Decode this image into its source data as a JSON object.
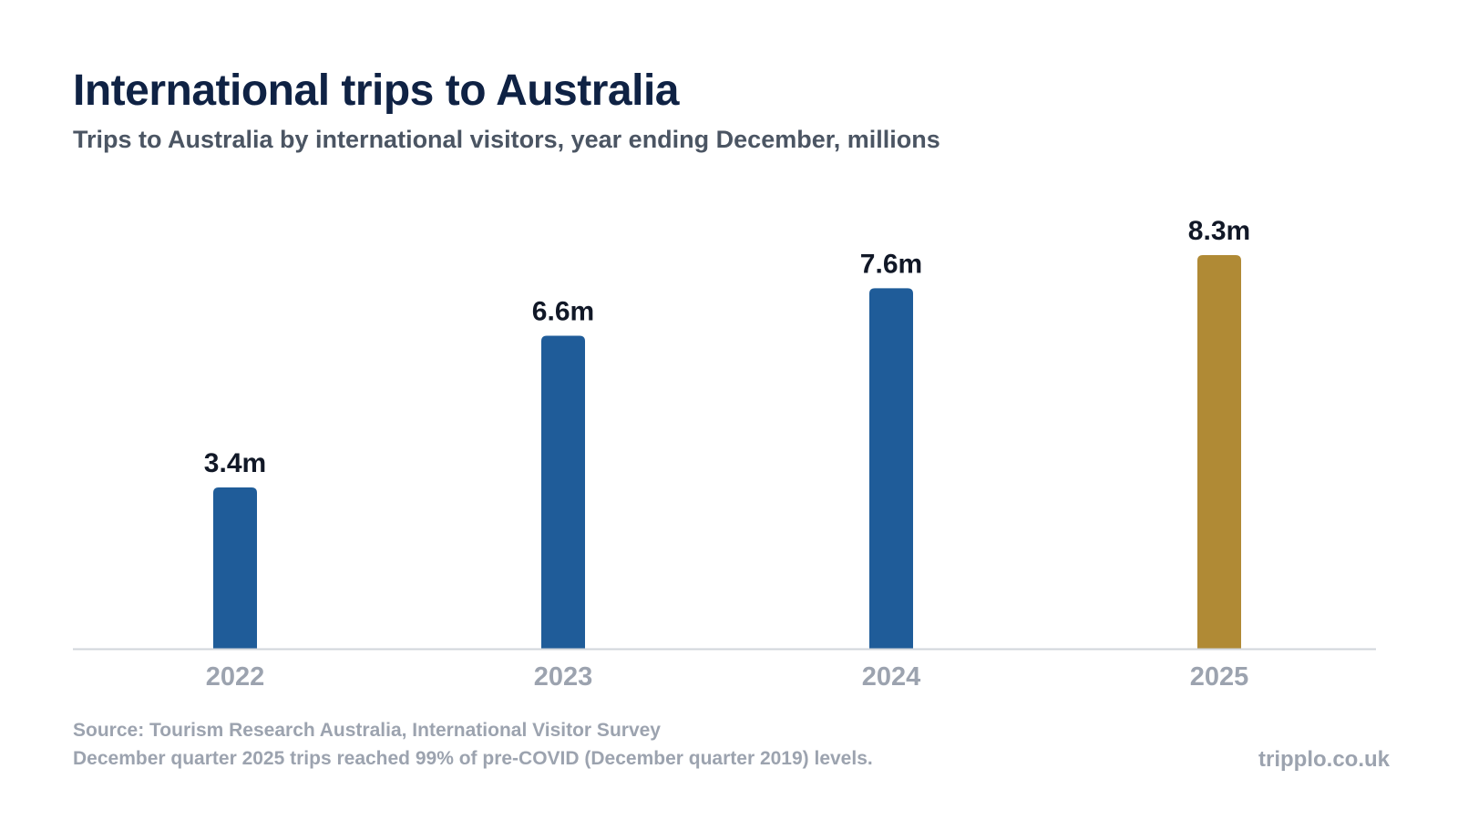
{
  "title": "International trips to Australia",
  "subtitle": "Trips to Australia by international visitors, year ending December, millions",
  "footer": {
    "source": "Source: Tourism Research Australia, International Visitor Survey",
    "note": "December quarter 2025 trips reached 99% of pre-COVID (December quarter 2019) levels.",
    "brand": "tripplo.co.uk"
  },
  "colors": {
    "bar": "#1f5c99",
    "highlight": "#b08a35",
    "axis": "#d1d5db",
    "value_label": "#111827",
    "tick_label": "#9ca3af"
  },
  "chart_data": {
    "type": "bar",
    "title": "International trips to Australia",
    "subtitle": "Trips to Australia by international visitors, year ending December, millions",
    "categories": [
      "2022",
      "2023",
      "2024",
      "2025"
    ],
    "values": [
      3.4,
      6.6,
      7.6,
      8.3
    ],
    "value_labels": [
      "3.4m",
      "6.6m",
      "7.6m",
      "8.3m"
    ],
    "highlight_index": 3,
    "ylim": [
      0,
      8.3
    ],
    "grid": false,
    "legend": "none",
    "xlabel": "",
    "ylabel": ""
  }
}
